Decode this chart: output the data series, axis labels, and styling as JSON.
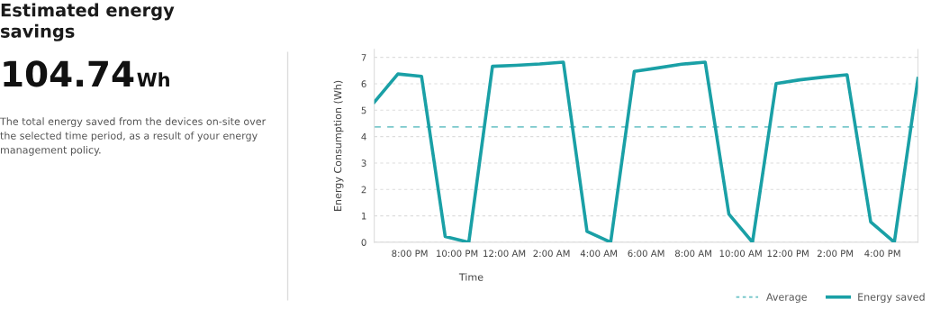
{
  "chart_data": [
    {
      "type": "other",
      "title": "Estimated energy savings",
      "annotations": [
        "104.74",
        "Wh",
        "The total energy saved from the devices on-site over the selected time period, as a result of your energy management policy."
      ]
    },
    {
      "type": "line",
      "xlabel": "Time",
      "ylabel": "Energy Consumption (Wh)",
      "x": [
        "2000-01-01T18:30",
        "2000-01-01T19:30",
        "2000-01-01T20:30",
        "2000-01-01T21:30",
        "2000-01-01T22:30",
        "2000-01-01T23:30",
        "2000-01-02T00:30",
        "2000-01-02T01:30",
        "2000-01-02T02:30",
        "2000-01-02T03:30",
        "2000-01-02T04:30",
        "2000-01-02T05:30",
        "2000-01-02T06:30",
        "2000-01-02T07:30",
        "2000-01-02T08:30",
        "2000-01-02T09:30",
        "2000-01-02T10:30",
        "2000-01-02T11:30",
        "2000-01-02T12:30",
        "2000-01-02T13:30",
        "2000-01-02T14:30",
        "2000-01-02T15:30",
        "2000-01-02T16:30",
        "2000-01-02T17:30"
      ],
      "series": [
        {
          "name": "Energy saved",
          "color": "#1aa0a6",
          "values": [
            5.3,
            6.37,
            6.28,
            0.22,
            0,
            6.66,
            6.7,
            6.75,
            6.82,
            0.41,
            0,
            6.47,
            6.6,
            6.74,
            6.82,
            1.07,
            0,
            6.01,
            6.15,
            6.25,
            6.34,
            0.77,
            0,
            6.2
          ]
        }
      ],
      "xlim": [
        "2000-01-01T18:30",
        "2000-01-02T17:30"
      ],
      "xticks": [
        {
          "value": "2000-01-01T20:00",
          "label": "8:00 PM"
        },
        {
          "value": "2000-01-01T22:00",
          "label": "10:00 PM"
        },
        {
          "value": "2000-01-02T00:00",
          "label": "12:00 AM"
        },
        {
          "value": "2000-01-02T02:00",
          "label": "2:00 AM"
        },
        {
          "value": "2000-01-02T04:00",
          "label": "4:00 AM"
        },
        {
          "value": "2000-01-02T06:00",
          "label": "6:00 AM"
        },
        {
          "value": "2000-01-02T08:00",
          "label": "8:00 AM"
        },
        {
          "value": "2000-01-02T10:00",
          "label": "10:00 AM"
        },
        {
          "value": "2000-01-02T12:00",
          "label": "12:00 PM"
        },
        {
          "value": "2000-01-02T14:00",
          "label": "2:00 PM"
        },
        {
          "value": "2000-01-02T16:00",
          "label": "4:00 PM"
        }
      ],
      "ylim": [
        0,
        7.3
      ],
      "yticks": [
        0,
        1,
        2,
        3,
        4,
        5,
        6,
        7
      ],
      "ref_lines": [
        {
          "axis": "y",
          "value": 4.37,
          "label": "Average",
          "color": "#7cc9cc",
          "line_style": "dashed"
        }
      ],
      "grid": "y",
      "legend": "bottom right",
      "marker": "none",
      "line_style": "solid"
    }
  ]
}
